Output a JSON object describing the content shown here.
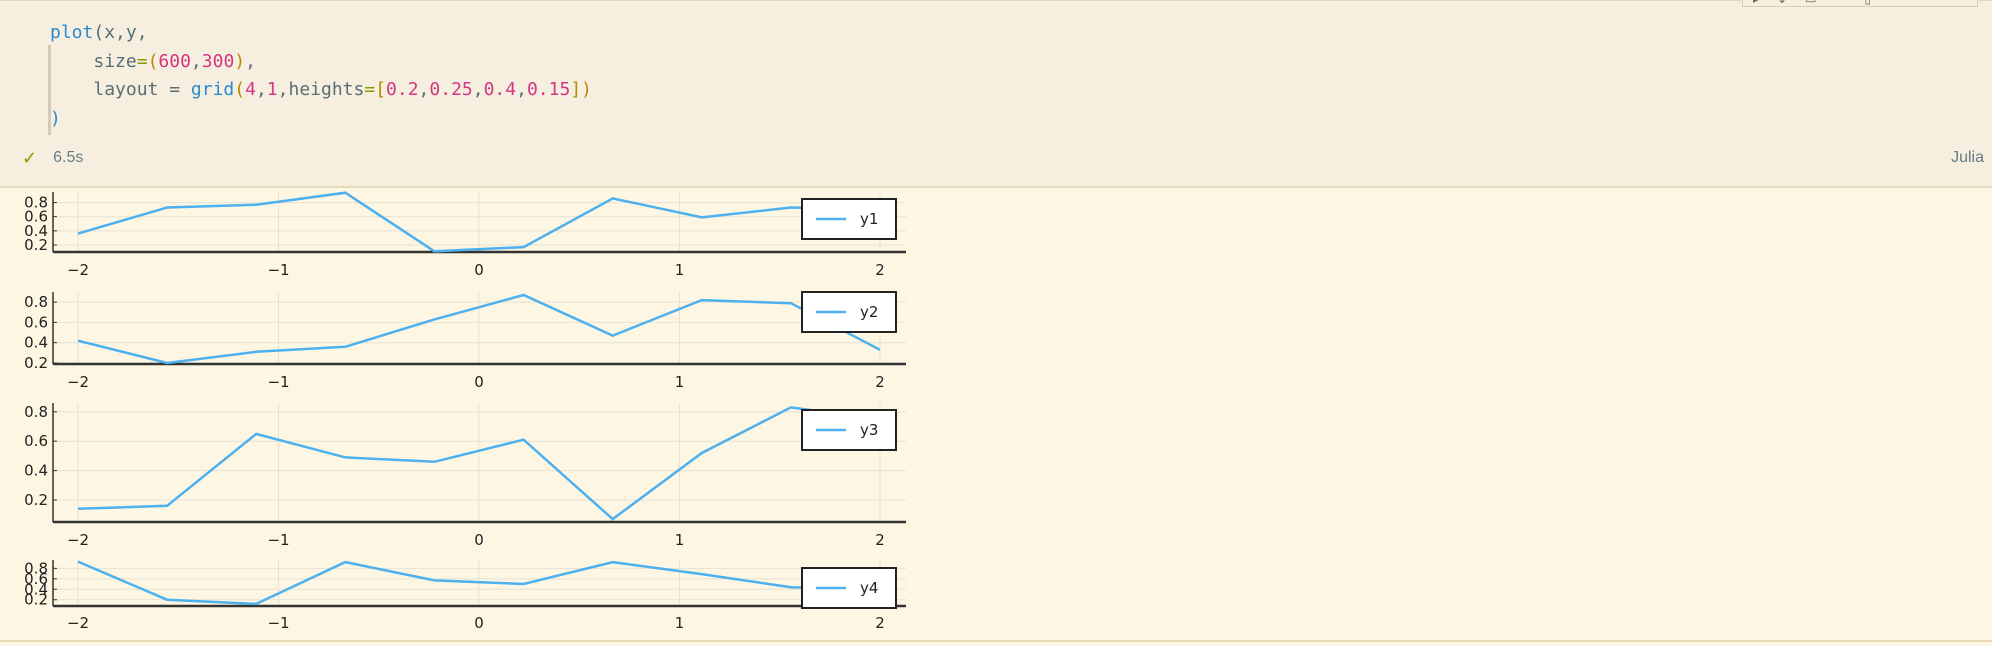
{
  "toolbar": {
    "icons": [
      "run-above-icon",
      "run-below-icon",
      "split-icon",
      "more-icon",
      "delete-icon"
    ]
  },
  "code": {
    "line1": {
      "fn": "plot",
      "args": "(x,y,"
    },
    "line2": {
      "arg": "size",
      "eq": "=",
      "v1": "600",
      "v2": "300"
    },
    "line3": {
      "arg": "layout = ",
      "fn": "grid",
      "a": "4",
      "b": "1",
      "kw": "heights",
      "eq": "=",
      "h": [
        "0.2",
        "0.25",
        "0.4",
        "0.15"
      ]
    },
    "line4": ")"
  },
  "status": {
    "time": "6.5s",
    "language": "Julia"
  },
  "colors": {
    "series": "#4db0ef",
    "code_keyword": "#268bd2",
    "code_number": "#d33682",
    "code_equal": "#859900"
  },
  "chart_data": [
    {
      "type": "line",
      "x": [
        -2,
        -1.5556,
        -1.1111,
        -0.6667,
        -0.2222,
        0.2222,
        0.6667,
        1.1111,
        1.5556,
        2
      ],
      "series": [
        {
          "name": "y1",
          "values": [
            0.36,
            0.73,
            0.77,
            0.94,
            0.11,
            0.17,
            0.86,
            0.59,
            0.73,
            0.7
          ]
        }
      ],
      "xticks": [
        "−2",
        "−1",
        "0",
        "1",
        "2"
      ],
      "xtick_values": [
        -2,
        -1,
        0,
        1,
        2
      ],
      "yticks": [
        "0.2",
        "0.4",
        "0.6",
        "0.8"
      ],
      "ytick_values": [
        0.2,
        0.4,
        0.6,
        0.8
      ],
      "ylim": [
        0.1,
        0.95
      ],
      "legend": "right",
      "grid": true
    },
    {
      "type": "line",
      "x": [
        -2,
        -1.5556,
        -1.1111,
        -0.6667,
        -0.2222,
        0.2222,
        0.6667,
        1.1111,
        1.5556,
        2
      ],
      "series": [
        {
          "name": "y2",
          "values": [
            0.42,
            0.2,
            0.31,
            0.36,
            0.63,
            0.87,
            0.47,
            0.82,
            0.79,
            0.33
          ]
        }
      ],
      "xticks": [
        "−2",
        "−1",
        "0",
        "1",
        "2"
      ],
      "xtick_values": [
        -2,
        -1,
        0,
        1,
        2
      ],
      "yticks": [
        "0.2",
        "0.4",
        "0.6",
        "0.8"
      ],
      "ytick_values": [
        0.2,
        0.4,
        0.6,
        0.8
      ],
      "ylim": [
        0.19,
        0.9
      ],
      "legend": "right",
      "grid": true
    },
    {
      "type": "line",
      "x": [
        -2,
        -1.5556,
        -1.1111,
        -0.6667,
        -0.2222,
        0.2222,
        0.6667,
        1.1111,
        1.5556,
        2
      ],
      "series": [
        {
          "name": "y3",
          "values": [
            0.14,
            0.16,
            0.65,
            0.49,
            0.46,
            0.61,
            0.07,
            0.52,
            0.83,
            0.75
          ]
        }
      ],
      "xticks": [
        "−2",
        "−1",
        "0",
        "1",
        "2"
      ],
      "xtick_values": [
        -2,
        -1,
        0,
        1,
        2
      ],
      "yticks": [
        "0.2",
        "0.4",
        "0.6",
        "0.8"
      ],
      "ytick_values": [
        0.2,
        0.4,
        0.6,
        0.8
      ],
      "ylim": [
        0.05,
        0.86
      ],
      "legend": "right",
      "grid": true
    },
    {
      "type": "line",
      "x": [
        -2,
        -1.5556,
        -1.1111,
        -0.6667,
        -0.2222,
        0.2222,
        0.6667,
        1.1111,
        1.5556,
        2
      ],
      "series": [
        {
          "name": "y4",
          "values": [
            0.93,
            0.2,
            0.12,
            0.92,
            0.57,
            0.5,
            0.92,
            0.69,
            0.44,
            0.39
          ]
        }
      ],
      "xticks": [
        "−2",
        "−1",
        "0",
        "1",
        "2"
      ],
      "xtick_values": [
        -2,
        -1,
        0,
        1,
        2
      ],
      "yticks": [
        "0.2",
        "0.4",
        "0.6",
        "0.8"
      ],
      "ytick_values": [
        0.2,
        0.4,
        0.6,
        0.8
      ],
      "ylim": [
        0.08,
        0.96
      ],
      "legend": "right",
      "grid": true
    }
  ]
}
